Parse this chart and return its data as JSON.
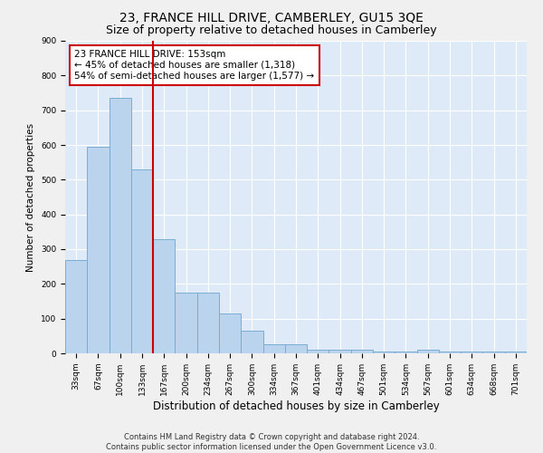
{
  "title": "23, FRANCE HILL DRIVE, CAMBERLEY, GU15 3QE",
  "subtitle": "Size of property relative to detached houses in Camberley",
  "xlabel": "Distribution of detached houses by size in Camberley",
  "ylabel": "Number of detached properties",
  "bar_color": "#bad4ee",
  "bar_edge_color": "#7aadd4",
  "background_color": "#deeaf7",
  "grid_color": "#ffffff",
  "fig_background": "#f0f0f0",
  "categories": [
    "33sqm",
    "67sqm",
    "100sqm",
    "133sqm",
    "167sqm",
    "200sqm",
    "234sqm",
    "267sqm",
    "300sqm",
    "334sqm",
    "367sqm",
    "401sqm",
    "434sqm",
    "467sqm",
    "501sqm",
    "534sqm",
    "567sqm",
    "601sqm",
    "634sqm",
    "668sqm",
    "701sqm"
  ],
  "values": [
    270,
    595,
    735,
    530,
    330,
    175,
    175,
    115,
    65,
    25,
    25,
    10,
    10,
    10,
    5,
    5,
    10,
    5,
    5,
    5,
    5
  ],
  "ylim": [
    0,
    900
  ],
  "yticks": [
    0,
    100,
    200,
    300,
    400,
    500,
    600,
    700,
    800,
    900
  ],
  "vline_x": 3.5,
  "vline_color": "#cc0000",
  "annotation_text": "23 FRANCE HILL DRIVE: 153sqm\n← 45% of detached houses are smaller (1,318)\n54% of semi-detached houses are larger (1,577) →",
  "annotation_box_color": "#ffffff",
  "annotation_box_edge_color": "#cc0000",
  "footer_text": "Contains HM Land Registry data © Crown copyright and database right 2024.\nContains public sector information licensed under the Open Government Licence v3.0.",
  "title_fontsize": 10,
  "subtitle_fontsize": 9,
  "xlabel_fontsize": 8.5,
  "ylabel_fontsize": 7.5,
  "tick_fontsize": 6.5,
  "annotation_fontsize": 7.5,
  "footer_fontsize": 6
}
